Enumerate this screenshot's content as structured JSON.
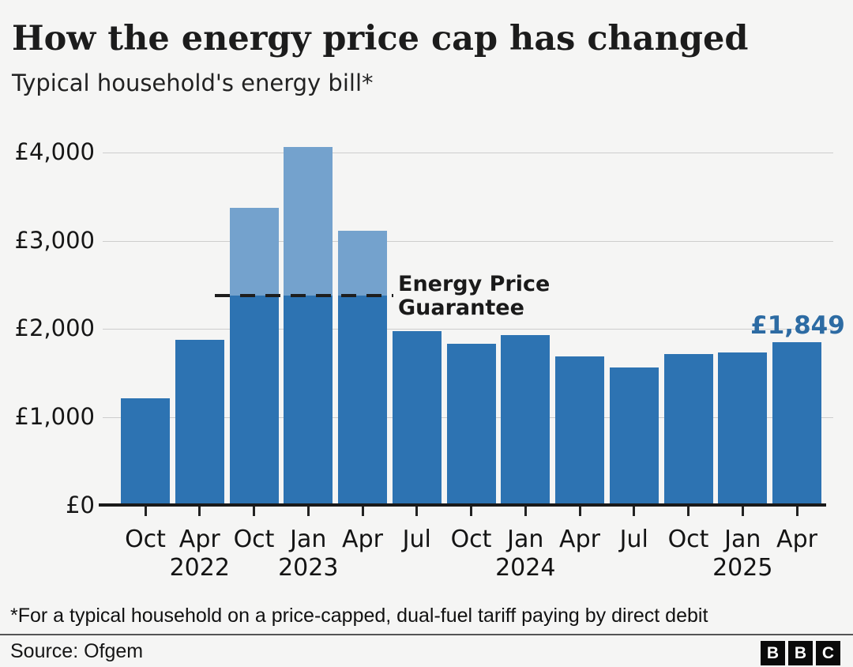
{
  "header": {
    "title": "How the energy price cap has changed",
    "subtitle": "Typical household's energy bill*"
  },
  "chart_data": {
    "type": "bar",
    "title": "How the energy price cap has changed",
    "subtitle": "Typical household's energy bill*",
    "ylabel": "",
    "xlabel": "",
    "ylim": [
      0,
      4200
    ],
    "grid": "horizontal",
    "yticks": {
      "values": [
        0,
        1000,
        2000,
        3000,
        4000
      ],
      "labels": [
        "£0",
        "£1,000",
        "£2,000",
        "£3,000",
        "£4,000"
      ]
    },
    "bars": [
      {
        "month": "Oct",
        "year": "",
        "value": 1216
      },
      {
        "month": "Apr",
        "year": "2022",
        "value": 1877
      },
      {
        "month": "Oct",
        "year": "",
        "value": 3370,
        "above_guarantee": true
      },
      {
        "month": "Jan",
        "year": "2023",
        "value": 4059,
        "above_guarantee": true
      },
      {
        "month": "Apr",
        "year": "",
        "value": 3116,
        "above_guarantee": true
      },
      {
        "month": "Jul",
        "year": "",
        "value": 1976
      },
      {
        "month": "Oct",
        "year": "",
        "value": 1834
      },
      {
        "month": "Jan",
        "year": "2024",
        "value": 1928
      },
      {
        "month": "Apr",
        "year": "",
        "value": 1690
      },
      {
        "month": "Jul",
        "year": "",
        "value": 1568
      },
      {
        "month": "Oct",
        "year": "",
        "value": 1717
      },
      {
        "month": "Jan",
        "year": "2025",
        "value": 1738
      },
      {
        "month": "Apr",
        "year": "",
        "value": 1849
      }
    ],
    "annotation": {
      "label": "Energy Price\nGuarantee",
      "value": 2380
    },
    "final_value_label": "£1,849",
    "colors": {
      "bar": "#2d73b2",
      "bar_above_guarantee": "#74a2cd",
      "final_value_label": "#2d6ba3",
      "annotation_line": "#1e1e1e"
    }
  },
  "footer": {
    "footnote": "*For a typical household on a price-capped, dual-fuel tariff paying by direct debit",
    "source": "Source: Ofgem",
    "logo_letters": [
      "B",
      "B",
      "C"
    ]
  }
}
